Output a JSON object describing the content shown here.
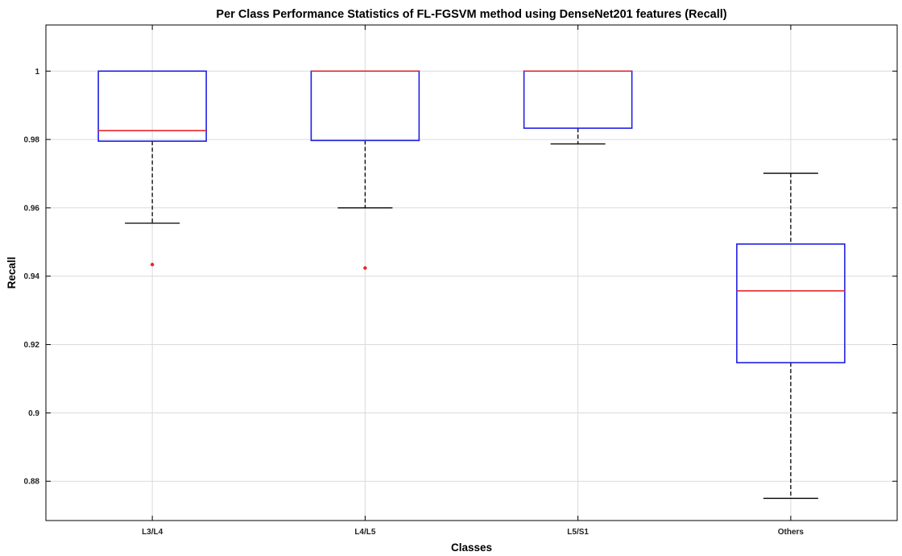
{
  "chart_data": {
    "type": "box",
    "title": "Per Class Performance Statistics of FL-FGSVM method using DenseNet201 features (Recall)",
    "xlabel": "Classes",
    "ylabel": "Recall",
    "ylim": [
      0.8685,
      1.0135
    ],
    "yticks": [
      0.88,
      0.9,
      0.92,
      0.94,
      0.96,
      0.98,
      1
    ],
    "ytick_labels": [
      "0.88",
      "0.9",
      "0.92",
      "0.94",
      "0.96",
      "0.98",
      "1"
    ],
    "grid": true,
    "categories": [
      "L3/L4",
      "L4/L5",
      "L5/S1",
      "Others"
    ],
    "boxes": [
      {
        "category": "L3/L4",
        "whisker_low": 0.9555,
        "q1": 0.9795,
        "median": 0.9826,
        "q3": 1.0,
        "whisker_high": 1.0,
        "outliers": [
          0.9434
        ]
      },
      {
        "category": "L4/L5",
        "whisker_low": 0.96,
        "q1": 0.9797,
        "median": 1.0,
        "q3": 1.0,
        "whisker_high": 1.0,
        "outliers": [
          0.9424
        ]
      },
      {
        "category": "L5/S1",
        "whisker_low": 0.9787,
        "q1": 0.9833,
        "median": 1.0,
        "q3": 1.0,
        "whisker_high": 1.0,
        "outliers": []
      },
      {
        "category": "Others",
        "whisker_low": 0.875,
        "q1": 0.9147,
        "median": 0.9357,
        "q3": 0.9494,
        "whisker_high": 0.9701,
        "outliers": []
      }
    ],
    "colors": {
      "box": "#1f1fe6",
      "median": "#e8252a",
      "whisker": "#000000",
      "outlier": "#e8252a",
      "grid": "#dadada"
    }
  }
}
